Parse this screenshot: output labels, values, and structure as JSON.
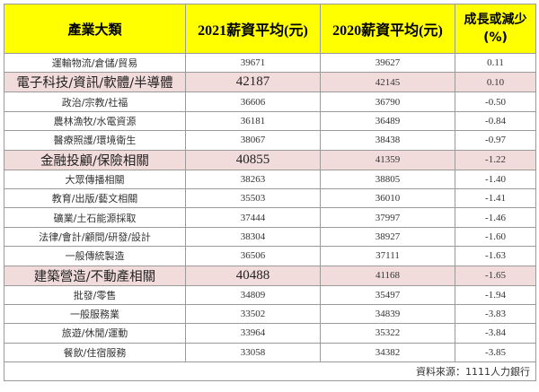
{
  "table": {
    "headers": {
      "category": "產業大類",
      "salary_2021": "2021薪資平均(元)",
      "salary_2020": "2020薪資平均(元)",
      "change_line1": "成長或減少",
      "change_line2": "(%)"
    },
    "highlight_color": "#f2dcdb",
    "header_color": "#ffff00",
    "rows": [
      {
        "category": "運輸物流/倉儲/貿易",
        "salary_2021": "39671",
        "salary_2020": "39627",
        "change": "0.11",
        "highlight": false
      },
      {
        "category": "電子科技/資訊/軟體/半導體",
        "salary_2021": "42187",
        "salary_2020": "42145",
        "change": "0.10",
        "highlight": true
      },
      {
        "category": "政治/宗教/社福",
        "salary_2021": "36606",
        "salary_2020": "36790",
        "change": "-0.50",
        "highlight": false
      },
      {
        "category": "農林漁牧/水電資源",
        "salary_2021": "36181",
        "salary_2020": "36489",
        "change": "-0.84",
        "highlight": false
      },
      {
        "category": "醫療照護/環境衛生",
        "salary_2021": "38067",
        "salary_2020": "38438",
        "change": "-0.97",
        "highlight": false
      },
      {
        "category": "金融投顧/保險相關",
        "salary_2021": "40855",
        "salary_2020": "41359",
        "change": "-1.22",
        "highlight": true
      },
      {
        "category": "大眾傳播相關",
        "salary_2021": "38263",
        "salary_2020": "38805",
        "change": "-1.40",
        "highlight": false
      },
      {
        "category": "教育/出版/藝文相關",
        "salary_2021": "35503",
        "salary_2020": "36010",
        "change": "-1.41",
        "highlight": false
      },
      {
        "category": "礦業/土石能源採取",
        "salary_2021": "37444",
        "salary_2020": "37997",
        "change": "-1.46",
        "highlight": false
      },
      {
        "category": "法律/會計/顧問/研發/設計",
        "salary_2021": "38304",
        "salary_2020": "38927",
        "change": "-1.60",
        "highlight": false
      },
      {
        "category": "一般傳統製造",
        "salary_2021": "36506",
        "salary_2020": "37111",
        "change": "-1.63",
        "highlight": false
      },
      {
        "category": "建築營造/不動產相關",
        "salary_2021": "40488",
        "salary_2020": "41168",
        "change": "-1.65",
        "highlight": true
      },
      {
        "category": "批發/零售",
        "salary_2021": "34809",
        "salary_2020": "35497",
        "change": "-1.94",
        "highlight": false
      },
      {
        "category": "一般服務業",
        "salary_2021": "33502",
        "salary_2020": "34839",
        "change": "-3.83",
        "highlight": false
      },
      {
        "category": "旅遊/休閒/運動",
        "salary_2021": "33964",
        "salary_2020": "35322",
        "change": "-3.84",
        "highlight": false
      },
      {
        "category": "餐飲/住宿服務",
        "salary_2021": "33058",
        "salary_2020": "34382",
        "change": "-3.85",
        "highlight": false
      }
    ],
    "source": "資料來源：1111人力銀行"
  }
}
